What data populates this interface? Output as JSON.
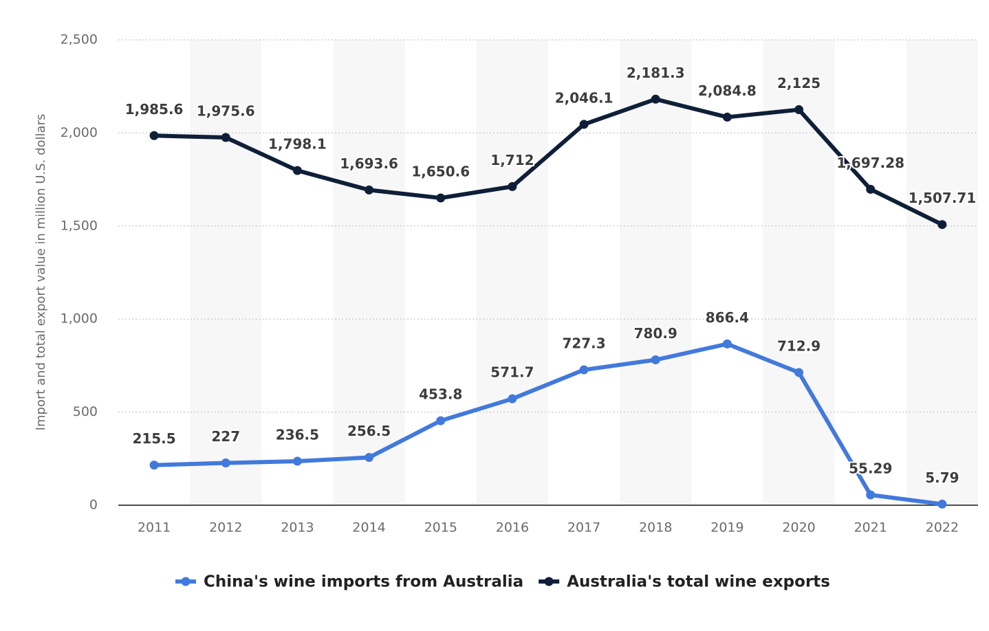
{
  "chart_data": {
    "type": "line",
    "y_label": "Import and total export value in million U.S. dollars",
    "categories": [
      "2011",
      "2012",
      "2013",
      "2014",
      "2015",
      "2016",
      "2017",
      "2018",
      "2019",
      "2020",
      "2021",
      "2022"
    ],
    "series": [
      {
        "name": "China's wine imports from Australia",
        "color": "#4279dc",
        "values": [
          215.5,
          227,
          236.5,
          256.5,
          453.8,
          571.7,
          727.3,
          780.9,
          866.4,
          712.9,
          55.29,
          5.79
        ]
      },
      {
        "name": "Australia's total wine exports",
        "color": "#0f1f38",
        "values": [
          1985.6,
          1975.6,
          1798.1,
          1693.6,
          1650.6,
          1712,
          2046.1,
          2181.3,
          2084.8,
          2125,
          1697.28,
          1507.71
        ],
        "value_labels": [
          "1,985.6",
          "1,975.6",
          "1,798.1",
          "1,693.6",
          "1,650.6",
          "1,712",
          "2,046.1",
          "2,181.3",
          "2,084.8",
          "2,125",
          "1,697.28",
          "1,507.71"
        ]
      }
    ],
    "ylim": [
      0,
      2500
    ],
    "yticks": [
      0,
      500,
      {
        "value": 1000,
        "label": "1,000"
      },
      {
        "value": 1500,
        "label": "1,500"
      },
      {
        "value": 2000,
        "label": "2,000"
      },
      {
        "value": 2500,
        "label": "2,500"
      }
    ],
    "grid": true
  }
}
